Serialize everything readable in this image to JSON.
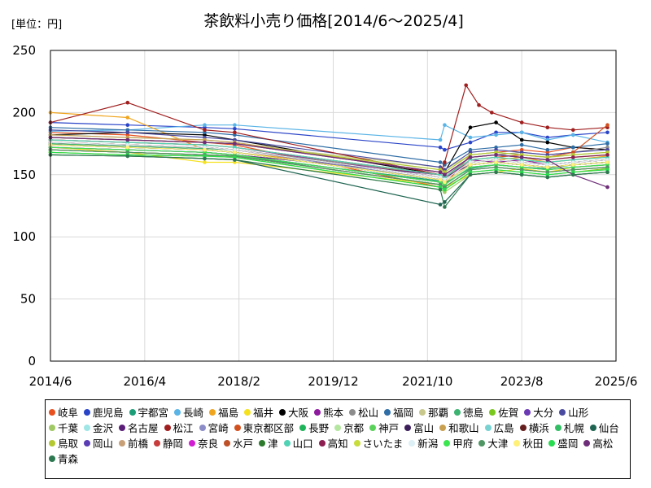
{
  "chart_data": {
    "type": "line",
    "title": "茶飲料小売り価格[2014/6～2025/4]",
    "unit_label": "[単位：円]",
    "xlabel": "",
    "ylabel": "",
    "ylim": [
      0,
      250
    ],
    "yticks": [
      "0",
      "50",
      "100",
      "150",
      "200",
      "250"
    ],
    "xlim": [
      "2014/6",
      "2025/6"
    ],
    "xticks": [
      "2014/6",
      "2016/4",
      "2018/2",
      "2019/12",
      "2021/10",
      "2023/8",
      "2025/6"
    ],
    "grid": true,
    "legend_position": "bottom",
    "series": [
      {
        "name": "岐阜",
        "color": "#e8501e",
        "values": {
          "2014/6": 184,
          "2015/12": 182,
          "2017/6": 176,
          "2018/1": 174,
          "2022/1": 140,
          "2022/2": 142,
          "2022/8": 166,
          "2023/2": 168,
          "2023/8": 170,
          "2024/2": 168,
          "2024/8": 172,
          "2025/4": 170
        }
      },
      {
        "name": "鹿児島",
        "color": "#2a44c8",
        "values": {
          "2014/6": 192,
          "2015/12": 190,
          "2017/6": 188,
          "2018/1": 187,
          "2022/1": 172,
          "2022/2": 170,
          "2022/8": 176,
          "2023/2": 184,
          "2023/8": 184,
          "2024/2": 180,
          "2024/8": 182,
          "2025/4": 184
        }
      },
      {
        "name": "宇都宮",
        "color": "#1b9e77",
        "values": {
          "2014/6": 170,
          "2015/12": 168,
          "2017/6": 166,
          "2018/1": 165,
          "2022/1": 145,
          "2022/2": 143,
          "2022/8": 155,
          "2023/2": 158,
          "2023/8": 156,
          "2024/2": 155,
          "2024/8": 158,
          "2025/4": 160
        }
      },
      {
        "name": "長崎",
        "color": "#5ab4e6",
        "values": {
          "2014/6": 185,
          "2015/12": 186,
          "2017/6": 190,
          "2018/1": 190,
          "2022/1": 178,
          "2022/2": 190,
          "2022/8": 180,
          "2023/2": 182,
          "2023/8": 184,
          "2024/2": 178,
          "2024/8": 182,
          "2025/4": 176
        }
      },
      {
        "name": "福島",
        "color": "#f0a51e",
        "values": {
          "2014/6": 200,
          "2015/12": 196,
          "2017/6": 170,
          "2018/1": 168,
          "2022/1": 150,
          "2022/2": 148,
          "2022/8": 160,
          "2023/2": 162,
          "2023/8": 164,
          "2024/2": 160,
          "2024/8": 162,
          "2025/4": 165
        }
      },
      {
        "name": "福井",
        "color": "#f5e11e",
        "values": {
          "2014/6": 172,
          "2015/12": 168,
          "2017/6": 160,
          "2018/1": 160,
          "2022/1": 142,
          "2022/2": 140,
          "2022/8": 150,
          "2023/2": 152,
          "2023/8": 155,
          "2024/2": 152,
          "2024/8": 156,
          "2025/4": 158
        }
      },
      {
        "name": "大阪",
        "color": "#000000",
        "values": {
          "2014/6": 182,
          "2015/12": 184,
          "2017/6": 182,
          "2018/1": 178,
          "2022/1": 150,
          "2022/2": 152,
          "2022/8": 188,
          "2023/2": 192,
          "2023/8": 178,
          "2024/2": 176,
          "2024/8": 172,
          "2025/4": 170
        }
      },
      {
        "name": "熊本",
        "color": "#8e1b9e",
        "values": {
          "2014/6": 178,
          "2015/12": 176,
          "2017/6": 174,
          "2018/1": 172,
          "2022/1": 148,
          "2022/2": 146,
          "2022/8": 162,
          "2023/2": 160,
          "2023/8": 162,
          "2024/2": 158,
          "2024/8": 160,
          "2025/4": 162
        }
      },
      {
        "name": "松山",
        "color": "#8c8c8c",
        "values": {
          "2014/6": 176,
          "2015/12": 174,
          "2017/6": 172,
          "2018/1": 170,
          "2022/1": 150,
          "2022/2": 148,
          "2022/8": 164,
          "2023/2": 166,
          "2023/8": 168,
          "2024/2": 166,
          "2024/8": 168,
          "2025/4": 172
        }
      },
      {
        "name": "福岡",
        "color": "#2f6ea6",
        "values": {
          "2014/6": 188,
          "2015/12": 186,
          "2017/6": 184,
          "2018/1": 182,
          "2022/1": 160,
          "2022/2": 158,
          "2022/8": 170,
          "2023/2": 172,
          "2023/8": 174,
          "2024/2": 170,
          "2024/8": 172,
          "2025/4": 175
        }
      },
      {
        "name": "那覇",
        "color": "#c8c88c",
        "values": {
          "2014/6": 180,
          "2015/12": 178,
          "2017/6": 176,
          "2018/1": 175,
          "2022/1": 156,
          "2022/2": 154,
          "2022/8": 166,
          "2023/2": 168,
          "2023/8": 166,
          "2024/2": 164,
          "2024/8": 166,
          "2025/4": 168
        }
      },
      {
        "name": "徳島",
        "color": "#3cb371",
        "values": {
          "2014/6": 175,
          "2015/12": 173,
          "2017/6": 171,
          "2018/1": 170,
          "2022/1": 148,
          "2022/2": 146,
          "2022/8": 160,
          "2023/2": 162,
          "2023/8": 160,
          "2024/2": 158,
          "2024/8": 160,
          "2025/4": 162
        }
      },
      {
        "name": "佐賀",
        "color": "#7ac81e",
        "values": {
          "2014/6": 168,
          "2015/12": 166,
          "2017/6": 165,
          "2018/1": 164,
          "2022/1": 140,
          "2022/2": 138,
          "2022/8": 152,
          "2023/2": 154,
          "2023/8": 152,
          "2024/2": 150,
          "2024/8": 152,
          "2025/4": 155
        }
      },
      {
        "name": "大分",
        "color": "#6a3ab4",
        "values": {
          "2014/6": 174,
          "2015/12": 172,
          "2017/6": 170,
          "2018/1": 168,
          "2022/1": 146,
          "2022/2": 144,
          "2022/8": 158,
          "2023/2": 160,
          "2023/8": 158,
          "2024/2": 156,
          "2024/8": 158,
          "2025/4": 160
        }
      },
      {
        "name": "山形",
        "color": "#4a4aa0",
        "values": {
          "2014/6": 186,
          "2015/12": 184,
          "2017/6": 180,
          "2018/1": 178,
          "2022/1": 156,
          "2022/2": 154,
          "2022/8": 168,
          "2023/2": 170,
          "2023/8": 168,
          "2024/2": 166,
          "2024/8": 168,
          "2025/4": 170
        }
      },
      {
        "name": "千葉",
        "color": "#a0c864",
        "values": {
          "2014/6": 166,
          "2015/12": 165,
          "2017/6": 163,
          "2018/1": 162,
          "2022/1": 138,
          "2022/2": 136,
          "2022/8": 150,
          "2023/2": 152,
          "2023/8": 150,
          "2024/2": 148,
          "2024/8": 150,
          "2025/4": 152
        }
      },
      {
        "name": "金沢",
        "color": "#a0e6e6",
        "values": {
          "2014/6": 182,
          "2015/12": 180,
          "2017/6": 178,
          "2018/1": 176,
          "2022/1": 152,
          "2022/2": 150,
          "2022/8": 164,
          "2023/2": 166,
          "2023/8": 164,
          "2024/2": 162,
          "2024/8": 164,
          "2025/4": 166
        }
      },
      {
        "name": "名古屋",
        "color": "#5a1e78",
        "values": {
          "2014/6": 172,
          "2015/12": 170,
          "2017/6": 168,
          "2018/1": 166,
          "2022/1": 150,
          "2022/2": 148,
          "2022/8": 158,
          "2023/2": 160,
          "2023/8": 158,
          "2024/2": 156,
          "2024/8": 158,
          "2025/4": 160
        }
      },
      {
        "name": "松江",
        "color": "#a01e1e",
        "values": {
          "2014/6": 192,
          "2015/12": 208,
          "2017/6": 186,
          "2018/1": 184,
          "2022/1": 150,
          "2022/2": 160,
          "2022/7": 222,
          "2022/10": 206,
          "2023/1": 200,
          "2023/8": 192,
          "2024/2": 188,
          "2024/8": 186,
          "2025/4": 188
        }
      },
      {
        "name": "宮崎",
        "color": "#8c8cc8",
        "values": {
          "2014/6": 176,
          "2015/12": 174,
          "2017/6": 172,
          "2018/1": 170,
          "2022/1": 146,
          "2022/2": 144,
          "2022/8": 158,
          "2023/2": 160,
          "2023/8": 158,
          "2024/2": 156,
          "2024/8": 158,
          "2025/4": 160
        }
      },
      {
        "name": "東京都区部",
        "color": "#d2501e",
        "values": {
          "2014/6": 178,
          "2015/12": 176,
          "2017/6": 174,
          "2018/1": 172,
          "2022/1": 150,
          "2022/2": 148,
          "2022/8": 162,
          "2023/2": 164,
          "2023/8": 166,
          "2024/2": 164,
          "2024/8": 168,
          "2025/4": 190
        }
      },
      {
        "name": "長野",
        "color": "#1eb45a",
        "values": {
          "2014/6": 170,
          "2015/12": 168,
          "2017/6": 166,
          "2018/1": 165,
          "2022/1": 142,
          "2022/2": 140,
          "2022/8": 154,
          "2023/2": 156,
          "2023/8": 154,
          "2024/2": 152,
          "2024/8": 154,
          "2025/4": 156
        }
      },
      {
        "name": "京都",
        "color": "#b4e6a0",
        "values": {
          "2014/6": 180,
          "2015/12": 178,
          "2017/6": 176,
          "2018/1": 175,
          "2022/1": 154,
          "2022/2": 152,
          "2022/8": 166,
          "2023/2": 168,
          "2023/8": 166,
          "2024/2": 164,
          "2024/8": 166,
          "2025/4": 168
        }
      },
      {
        "name": "神戸",
        "color": "#5ad25a",
        "values": {
          "2014/6": 174,
          "2015/12": 172,
          "2017/6": 170,
          "2018/1": 168,
          "2022/1": 146,
          "2022/2": 144,
          "2022/8": 158,
          "2023/2": 160,
          "2023/8": 158,
          "2024/2": 156,
          "2024/8": 158,
          "2025/4": 160
        }
      },
      {
        "name": "富山",
        "color": "#3c1e5a",
        "values": {
          "2014/6": 176,
          "2015/12": 174,
          "2017/6": 172,
          "2018/1": 170,
          "2022/1": 148,
          "2022/2": 146,
          "2022/8": 160,
          "2023/2": 162,
          "2023/8": 160,
          "2024/2": 158,
          "2024/8": 160,
          "2025/4": 162
        }
      },
      {
        "name": "和歌山",
        "color": "#c8a050",
        "values": {
          "2014/6": 182,
          "2015/12": 180,
          "2017/6": 178,
          "2018/1": 176,
          "2022/1": 152,
          "2022/2": 150,
          "2022/8": 164,
          "2023/2": 166,
          "2023/8": 164,
          "2024/2": 162,
          "2024/8": 164,
          "2025/4": 166
        }
      },
      {
        "name": "広島",
        "color": "#78d2d2",
        "values": {
          "2014/6": 170,
          "2015/12": 168,
          "2017/6": 166,
          "2018/1": 165,
          "2022/1": 142,
          "2022/2": 140,
          "2022/8": 154,
          "2023/2": 156,
          "2023/8": 154,
          "2024/2": 152,
          "2024/8": 154,
          "2025/4": 156
        }
      },
      {
        "name": "横浜",
        "color": "#641e1e",
        "values": {
          "2014/6": 176,
          "2015/12": 174,
          "2017/6": 172,
          "2018/1": 170,
          "2022/1": 148,
          "2022/2": 146,
          "2022/8": 160,
          "2023/2": 162,
          "2023/8": 160,
          "2024/2": 158,
          "2024/8": 160,
          "2025/4": 162
        }
      },
      {
        "name": "札幌",
        "color": "#32be64",
        "values": {
          "2014/6": 172,
          "2015/12": 170,
          "2017/6": 168,
          "2018/1": 166,
          "2022/1": 144,
          "2022/2": 142,
          "2022/8": 156,
          "2023/2": 158,
          "2023/8": 156,
          "2024/2": 154,
          "2024/8": 156,
          "2025/4": 158
        }
      },
      {
        "name": "仙台",
        "color": "#1e6450",
        "values": {
          "2014/6": 166,
          "2015/12": 165,
          "2017/6": 163,
          "2018/1": 162,
          "2022/1": 126,
          "2022/2": 128,
          "2022/8": 150,
          "2023/2": 152,
          "2023/8": 150,
          "2024/2": 148,
          "2024/8": 150,
          "2025/4": 152
        }
      },
      {
        "name": "鳥取",
        "color": "#b4c832",
        "values": {
          "2014/6": 180,
          "2015/12": 178,
          "2017/6": 176,
          "2018/1": 175,
          "2022/1": 154,
          "2022/2": 152,
          "2022/8": 166,
          "2023/2": 168,
          "2023/8": 166,
          "2024/2": 164,
          "2024/8": 166,
          "2025/4": 168
        }
      },
      {
        "name": "岡山",
        "color": "#5a3cb4",
        "values": {
          "2014/6": 174,
          "2015/12": 172,
          "2017/6": 170,
          "2018/1": 168,
          "2022/1": 146,
          "2022/2": 144,
          "2022/8": 158,
          "2023/2": 160,
          "2023/8": 158,
          "2024/2": 156,
          "2024/8": 158,
          "2025/4": 160
        }
      },
      {
        "name": "前橋",
        "color": "#c8a078",
        "values": {
          "2014/6": 178,
          "2015/12": 176,
          "2017/6": 174,
          "2018/1": 172,
          "2022/1": 150,
          "2022/2": 148,
          "2022/8": 162,
          "2023/2": 164,
          "2023/8": 162,
          "2024/2": 160,
          "2024/8": 162,
          "2025/4": 164
        }
      },
      {
        "name": "静岡",
        "color": "#c83c3c",
        "values": {
          "2014/6": 176,
          "2015/12": 174,
          "2017/6": 172,
          "2018/1": 170,
          "2022/1": 148,
          "2022/2": 146,
          "2022/8": 160,
          "2023/2": 162,
          "2023/8": 160,
          "2024/2": 158,
          "2024/8": 160,
          "2025/4": 162
        }
      },
      {
        "name": "奈良",
        "color": "#d21ed2",
        "values": {
          "2014/6": 172,
          "2015/12": 170,
          "2017/6": 168,
          "2018/1": 166,
          "2022/1": 144,
          "2022/2": 142,
          "2022/8": 156,
          "2023/2": 158,
          "2023/8": 156,
          "2024/2": 154,
          "2024/8": 156,
          "2025/4": 158
        }
      },
      {
        "name": "水戸",
        "color": "#be5028",
        "values": {
          "2014/6": 170,
          "2015/12": 168,
          "2017/6": 166,
          "2018/1": 165,
          "2022/1": 142,
          "2022/2": 140,
          "2022/8": 154,
          "2023/2": 156,
          "2023/8": 154,
          "2024/2": 152,
          "2024/8": 154,
          "2025/4": 156
        }
      },
      {
        "name": "津",
        "color": "#2d7a2d",
        "values": {
          "2014/6": 174,
          "2015/12": 172,
          "2017/6": 170,
          "2018/1": 168,
          "2022/1": 146,
          "2022/2": 144,
          "2022/8": 158,
          "2023/2": 160,
          "2023/8": 158,
          "2024/2": 156,
          "2024/8": 158,
          "2025/4": 160
        }
      },
      {
        "name": "山口",
        "color": "#50d2b4",
        "values": {
          "2014/6": 178,
          "2015/12": 176,
          "2017/6": 174,
          "2018/1": 172,
          "2022/1": 150,
          "2022/2": 148,
          "2022/8": 162,
          "2023/2": 164,
          "2023/8": 162,
          "2024/2": 160,
          "2024/8": 162,
          "2025/4": 164
        }
      },
      {
        "name": "高知",
        "color": "#8c1e50",
        "values": {
          "2014/6": 180,
          "2015/12": 178,
          "2017/6": 176,
          "2018/1": 175,
          "2022/1": 152,
          "2022/2": 150,
          "2022/8": 164,
          "2023/2": 166,
          "2023/8": 164,
          "2024/2": 162,
          "2024/8": 164,
          "2025/4": 166
        }
      },
      {
        "name": "さいたま",
        "color": "#c8dc3c",
        "values": {
          "2014/6": 168,
          "2015/12": 166,
          "2017/6": 165,
          "2018/1": 164,
          "2022/1": 140,
          "2022/2": 138,
          "2022/8": 152,
          "2023/2": 154,
          "2023/8": 152,
          "2024/2": 150,
          "2024/8": 152,
          "2025/4": 154
        }
      },
      {
        "name": "新潟",
        "color": "#dcf0f5",
        "values": {
          "2014/6": 176,
          "2015/12": 174,
          "2017/6": 172,
          "2018/1": 170,
          "2022/1": 148,
          "2022/2": 146,
          "2022/8": 160,
          "2023/2": 162,
          "2023/8": 160,
          "2024/2": 158,
          "2024/8": 160,
          "2025/4": 162
        }
      },
      {
        "name": "甲府",
        "color": "#3ce650",
        "values": {
          "2014/6": 172,
          "2015/12": 170,
          "2017/6": 168,
          "2018/1": 166,
          "2022/1": 144,
          "2022/2": 142,
          "2022/8": 156,
          "2023/2": 158,
          "2023/8": 156,
          "2024/2": 154,
          "2024/8": 156,
          "2025/4": 158
        }
      },
      {
        "name": "大津",
        "color": "#509664",
        "values": {
          "2014/6": 170,
          "2015/12": 168,
          "2017/6": 166,
          "2018/1": 165,
          "2022/1": 142,
          "2022/2": 140,
          "2022/8": 154,
          "2023/2": 156,
          "2023/8": 154,
          "2024/2": 152,
          "2024/8": 154,
          "2025/4": 156
        }
      },
      {
        "name": "秋田",
        "color": "#fff078",
        "values": {
          "2014/6": 174,
          "2015/12": 172,
          "2017/6": 170,
          "2018/1": 168,
          "2022/1": 146,
          "2022/2": 144,
          "2022/8": 158,
          "2023/2": 160,
          "2023/8": 158,
          "2024/2": 156,
          "2024/8": 158,
          "2025/4": 160
        }
      },
      {
        "name": "盛岡",
        "color": "#28dc50",
        "values": {
          "2014/6": 168,
          "2015/12": 166,
          "2017/6": 165,
          "2018/1": 164,
          "2022/1": 140,
          "2022/2": 138,
          "2022/8": 152,
          "2023/2": 154,
          "2023/8": 152,
          "2024/2": 150,
          "2024/8": 152,
          "2025/4": 154
        }
      },
      {
        "name": "高松",
        "color": "#6e2d78",
        "values": {
          "2014/6": 180,
          "2015/12": 178,
          "2017/6": 176,
          "2018/1": 175,
          "2022/1": 152,
          "2022/2": 150,
          "2022/8": 164,
          "2023/2": 166,
          "2023/8": 164,
          "2024/2": 162,
          "2024/8": 150,
          "2025/4": 140
        }
      },
      {
        "name": "青森",
        "color": "#2d7850",
        "values": {
          "2014/6": 166,
          "2015/12": 165,
          "2017/6": 163,
          "2018/1": 162,
          "2022/1": 138,
          "2022/2": 124,
          "2022/8": 150,
          "2023/2": 152,
          "2023/8": 150,
          "2024/2": 148,
          "2024/8": 150,
          "2025/4": 152
        }
      }
    ]
  }
}
